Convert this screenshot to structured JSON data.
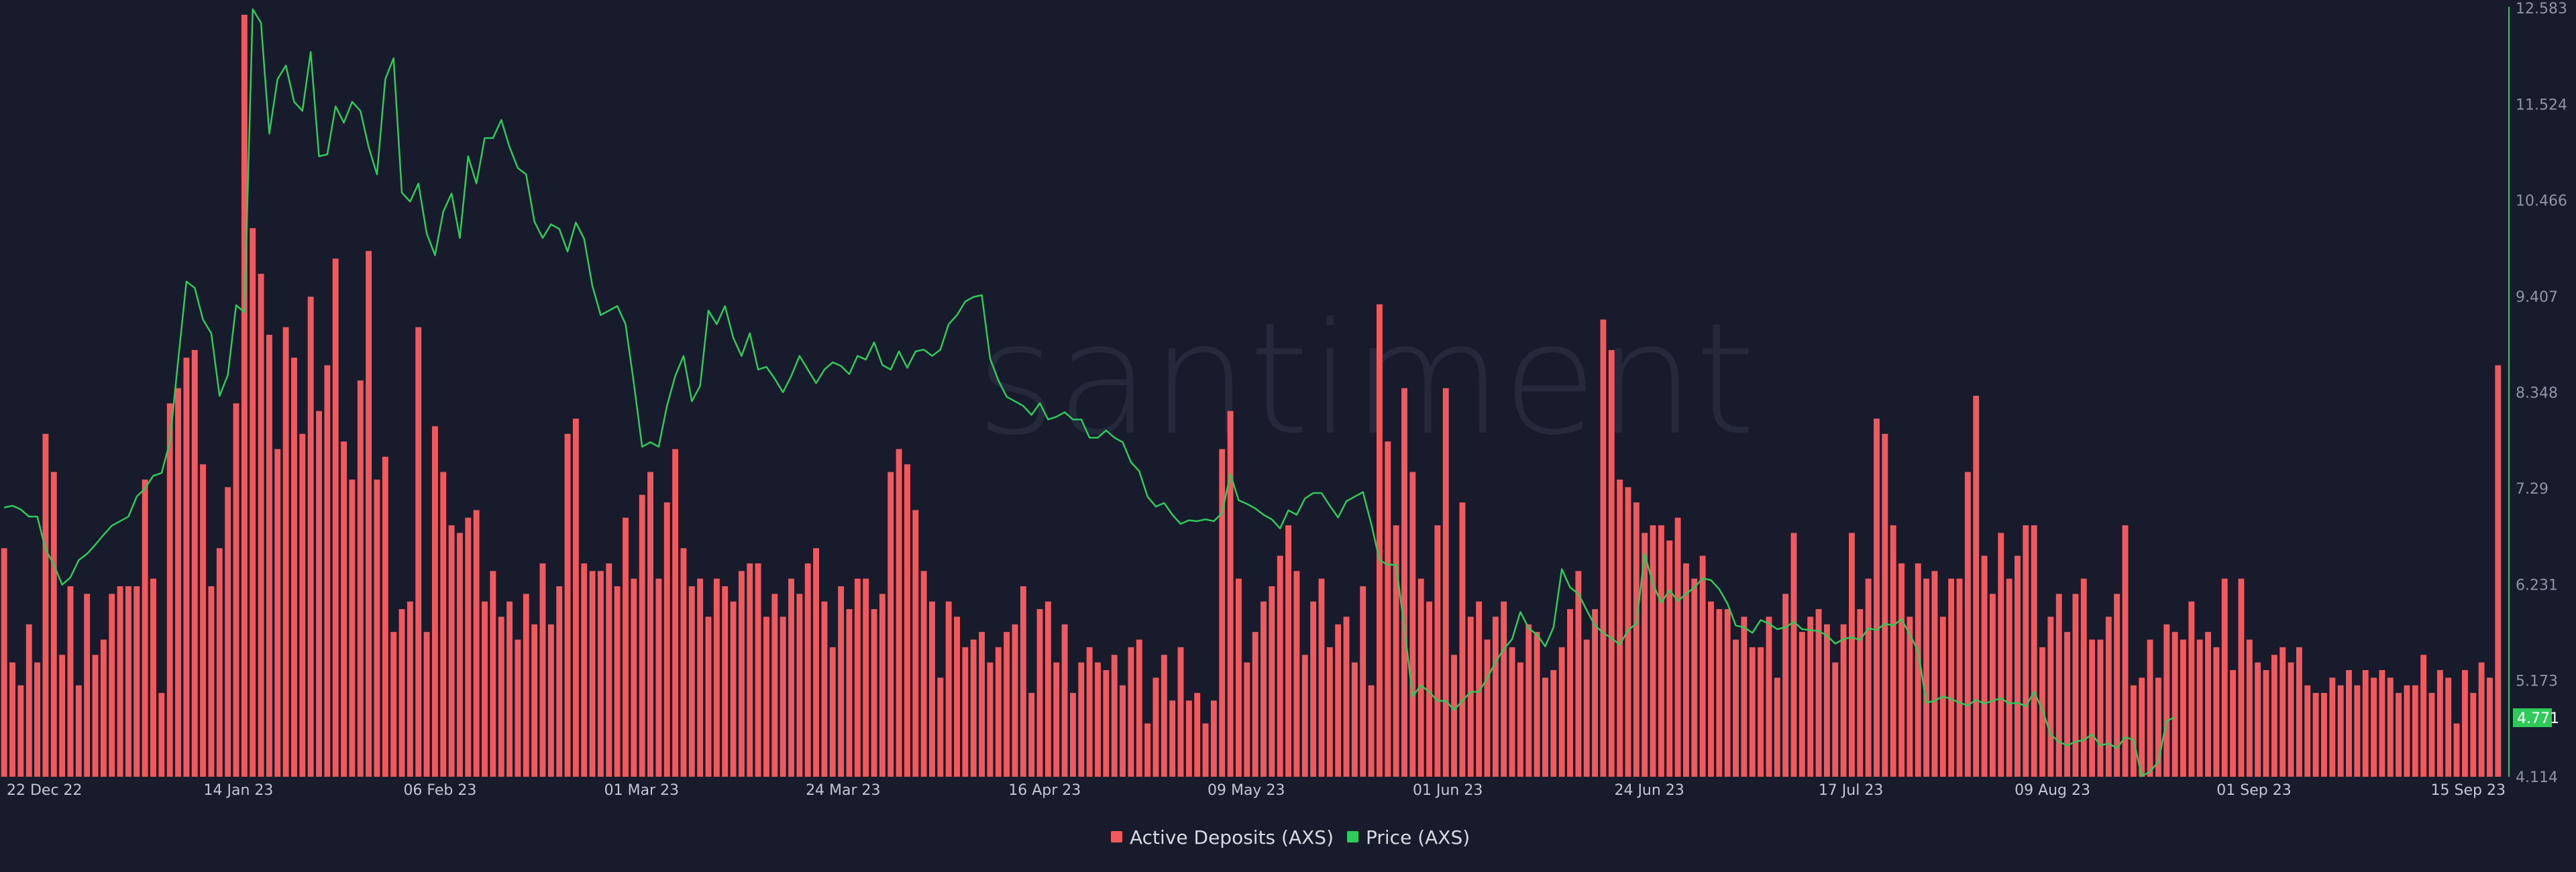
{
  "brand": {
    "watermark_text": "santiment"
  },
  "colors": {
    "background": "#171b2b",
    "deposits": "#f05a5f",
    "price": "#2fcb5a",
    "axis_line": "#2fcb5a",
    "tick_text": "#8f95a8"
  },
  "chart_data": {
    "type": "bar",
    "title": "",
    "xlabel": "",
    "ylabel": "",
    "x_tick_labels": [
      "22 Dec 22",
      "14 Jan 23",
      "06 Feb 23",
      "01 Mar 23",
      "24 Mar 23",
      "16 Apr 23",
      "09 May 23",
      "01 Jun 23",
      "24 Jun 23",
      "17 Jul 23",
      "09 Aug 23",
      "01 Sep 23",
      "15 Sep 23"
    ],
    "right_axis": {
      "ticks": [
        "12.583",
        "11.524",
        "10.466",
        "9.407",
        "8.348",
        "7.29",
        "6.231",
        "5.173",
        "4.114"
      ],
      "ylim": [
        4.114,
        12.583
      ],
      "last_value_label": "4.771"
    },
    "legend_position": "bottom-center",
    "series": [
      {
        "name": "Active Deposits (AXS)",
        "type": "bar",
        "note_scale": "relative 0-100 (left axis not shown)",
        "values": [
          30,
          15,
          12,
          20,
          15,
          45,
          40,
          16,
          25,
          12,
          24,
          16,
          18,
          24,
          25,
          25,
          25,
          39,
          26,
          11,
          49,
          51,
          55,
          56,
          41,
          25,
          30,
          38,
          49,
          100,
          72,
          66,
          58,
          43,
          59,
          55,
          45,
          63,
          48,
          54,
          68,
          44,
          39,
          52,
          69,
          39,
          42,
          19,
          22,
          23,
          59,
          19,
          46,
          40,
          33,
          32,
          34,
          35,
          23,
          27,
          21,
          23,
          18,
          24,
          20,
          28,
          20,
          25,
          45,
          47,
          28,
          27,
          27,
          28,
          25,
          34,
          26,
          37,
          40,
          26,
          36,
          43,
          30,
          25,
          26,
          21,
          26,
          25,
          23,
          27,
          28,
          28,
          21,
          24,
          21,
          26,
          24,
          28,
          30,
          23,
          17,
          25,
          22,
          26,
          26,
          22,
          24,
          40,
          43,
          41,
          35,
          27,
          23,
          13,
          23,
          21,
          17,
          18,
          19,
          15,
          17,
          19,
          20,
          25,
          11,
          22,
          23,
          15,
          20,
          11,
          15,
          17,
          15,
          14,
          16,
          12,
          17,
          18,
          7,
          13,
          16,
          10,
          17,
          10,
          11,
          7,
          10,
          43,
          48,
          26,
          15,
          19,
          23,
          25,
          29,
          33,
          27,
          16,
          23,
          26,
          17,
          20,
          21,
          15,
          25,
          12,
          62,
          44,
          33,
          51,
          40,
          26,
          23,
          33,
          51,
          16,
          36,
          21,
          23,
          18,
          21,
          23,
          17,
          15,
          20,
          19,
          13,
          14,
          17,
          22,
          27,
          18,
          22,
          60,
          56,
          39,
          38,
          36,
          32,
          33,
          33,
          31,
          34,
          28,
          26,
          29,
          23,
          22,
          22,
          18,
          21,
          17,
          17,
          21,
          13,
          24,
          32,
          19,
          21,
          22,
          20,
          15,
          20,
          32,
          22,
          26,
          47,
          45,
          33,
          28,
          21,
          28,
          26,
          27,
          21,
          26,
          26,
          40,
          50,
          29,
          24,
          32,
          26,
          29,
          33,
          33,
          17,
          21,
          24,
          19,
          24,
          26,
          18,
          18,
          21,
          24,
          33,
          12,
          13,
          18,
          13,
          20,
          19,
          18,
          23,
          18,
          19,
          17,
          26,
          14,
          26,
          18,
          15,
          14,
          16,
          17,
          15,
          17,
          12,
          11,
          11,
          13,
          12,
          14,
          12,
          14,
          13,
          14,
          13,
          11,
          12,
          12,
          16,
          11,
          14,
          13,
          7,
          14,
          11,
          15,
          13,
          54
        ]
      },
      {
        "name": "Price (AXS)",
        "type": "line",
        "values": [
          7.08,
          7.1,
          7.06,
          6.98,
          6.98,
          6.62,
          6.45,
          6.23,
          6.31,
          6.5,
          6.57,
          6.67,
          6.78,
          6.88,
          6.93,
          6.98,
          7.2,
          7.29,
          7.43,
          7.46,
          7.8,
          8.7,
          9.57,
          9.5,
          9.15,
          9.0,
          8.31,
          8.54,
          9.31,
          9.23,
          12.57,
          12.42,
          11.2,
          11.8,
          11.95,
          11.55,
          11.45,
          12.1,
          10.95,
          10.97,
          11.5,
          11.32,
          11.55,
          11.45,
          11.05,
          10.75,
          11.8,
          12.03,
          10.55,
          10.45,
          10.65,
          10.1,
          9.86,
          10.34,
          10.54,
          10.05,
          10.95,
          10.65,
          11.15,
          11.15,
          11.35,
          11.05,
          10.82,
          10.75,
          10.23,
          10.05,
          10.2,
          10.15,
          9.9,
          10.22,
          10.04,
          9.52,
          9.2,
          9.25,
          9.3,
          9.1,
          8.45,
          7.75,
          7.8,
          7.75,
          8.2,
          8.53,
          8.75,
          8.25,
          8.42,
          9.25,
          9.1,
          9.3,
          8.95,
          8.75,
          9.0,
          8.6,
          8.63,
          8.5,
          8.35,
          8.53,
          8.75,
          8.6,
          8.45,
          8.6,
          8.68,
          8.64,
          8.55,
          8.75,
          8.71,
          8.9,
          8.65,
          8.6,
          8.8,
          8.62,
          8.8,
          8.82,
          8.75,
          8.82,
          9.1,
          9.2,
          9.35,
          9.4,
          9.42,
          8.72,
          8.48,
          8.3,
          8.25,
          8.2,
          8.1,
          8.23,
          8.05,
          8.08,
          8.13,
          8.05,
          8.05,
          7.85,
          7.85,
          7.93,
          7.85,
          7.8,
          7.58,
          7.48,
          7.2,
          7.09,
          7.13,
          7.0,
          6.9,
          6.94,
          6.93,
          6.95,
          6.93,
          7.02,
          7.45,
          7.16,
          7.12,
          7.07,
          7.0,
          6.95,
          6.85,
          7.05,
          7.0,
          7.18,
          7.24,
          7.24,
          7.1,
          6.97,
          7.15,
          7.2,
          7.25,
          6.9,
          6.5,
          6.45,
          6.45,
          5.75,
          5.0,
          5.12,
          5.05,
          4.95,
          4.95,
          4.85,
          4.95,
          5.05,
          5.05,
          5.2,
          5.38,
          5.52,
          5.63,
          5.93,
          5.75,
          5.68,
          5.55,
          5.76,
          6.4,
          6.2,
          6.13,
          5.95,
          5.78,
          5.7,
          5.64,
          5.57,
          5.73,
          5.8,
          6.57,
          6.24,
          6.03,
          6.17,
          6.05,
          6.13,
          6.2,
          6.3,
          6.28,
          6.18,
          6.02,
          5.78,
          5.76,
          5.7,
          5.84,
          5.8,
          5.74,
          5.76,
          5.82,
          5.74,
          5.73,
          5.72,
          5.67,
          5.58,
          5.63,
          5.65,
          5.62,
          5.75,
          5.73,
          5.8,
          5.78,
          5.85,
          5.68,
          5.5,
          4.93,
          4.95,
          5.0,
          4.97,
          4.93,
          4.9,
          4.96,
          4.92,
          4.95,
          4.98,
          4.92,
          4.93,
          4.89,
          5.05,
          4.85,
          4.58,
          4.5,
          4.46,
          4.5,
          4.52,
          4.58,
          4.46,
          4.48,
          4.43,
          4.55,
          4.52,
          4.12,
          4.17,
          4.28,
          4.73,
          4.77
        ]
      }
    ]
  }
}
